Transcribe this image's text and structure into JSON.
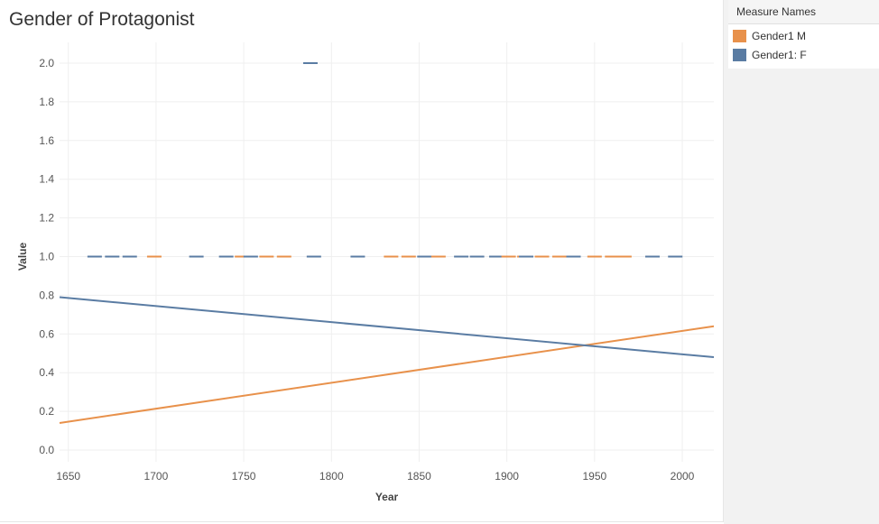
{
  "title": "Gender of Protagonist",
  "legend": {
    "header": "Measure Names",
    "items": [
      {
        "label": "Gender1 M",
        "color": "#e8914b"
      },
      {
        "label": "Gender1: F",
        "color": "#5a7ca3"
      }
    ]
  },
  "chart_data": {
    "type": "line",
    "title": "Gender of Protagonist",
    "xlabel": "Year",
    "ylabel": "Value",
    "xlim": [
      1645,
      2018
    ],
    "ylim": [
      0.0,
      2.0
    ],
    "x_ticks": [
      1650,
      1700,
      1750,
      1800,
      1850,
      1900,
      1950,
      2000
    ],
    "y_ticks": [
      "0.0",
      "0.2",
      "0.4",
      "0.6",
      "0.8",
      "1.0",
      "1.2",
      "1.4",
      "1.6",
      "1.8",
      "2.0"
    ],
    "grid": true,
    "legend_position": "top-right",
    "trend_lines": [
      {
        "name": "Gender1 M",
        "color": "#e8914b",
        "x": [
          1645,
          2018
        ],
        "y": [
          0.14,
          0.64
        ]
      },
      {
        "name": "Gender1: F",
        "color": "#5a7ca3",
        "x": [
          1645,
          2018
        ],
        "y": [
          0.79,
          0.48
        ]
      }
    ],
    "marks": [
      {
        "series": "Gender1: F",
        "color": "#5a7ca3",
        "year": 1788,
        "value": 2.0
      },
      {
        "series": "Gender1: F",
        "color": "#5a7ca3",
        "year": 1665,
        "value": 1.0
      },
      {
        "series": "Gender1: F",
        "color": "#5a7ca3",
        "year": 1675,
        "value": 1.0
      },
      {
        "series": "Gender1: F",
        "color": "#5a7ca3",
        "year": 1685,
        "value": 1.0
      },
      {
        "series": "Gender1 M",
        "color": "#e8914b",
        "year": 1699,
        "value": 1.0
      },
      {
        "series": "Gender1: F",
        "color": "#5a7ca3",
        "year": 1723,
        "value": 1.0
      },
      {
        "series": "Gender1: F",
        "color": "#5a7ca3",
        "year": 1740,
        "value": 1.0
      },
      {
        "series": "Gender1 M",
        "color": "#e8914b",
        "year": 1749,
        "value": 1.0
      },
      {
        "series": "Gender1: F",
        "color": "#5a7ca3",
        "year": 1754,
        "value": 1.0
      },
      {
        "series": "Gender1 M",
        "color": "#e8914b",
        "year": 1763,
        "value": 1.0
      },
      {
        "series": "Gender1 M",
        "color": "#e8914b",
        "year": 1773,
        "value": 1.0
      },
      {
        "series": "Gender1: F",
        "color": "#5a7ca3",
        "year": 1790,
        "value": 1.0
      },
      {
        "series": "Gender1: F",
        "color": "#5a7ca3",
        "year": 1815,
        "value": 1.0
      },
      {
        "series": "Gender1 M",
        "color": "#e8914b",
        "year": 1834,
        "value": 1.0
      },
      {
        "series": "Gender1 M",
        "color": "#e8914b",
        "year": 1844,
        "value": 1.0
      },
      {
        "series": "Gender1: F",
        "color": "#5a7ca3",
        "year": 1853,
        "value": 1.0
      },
      {
        "series": "Gender1 M",
        "color": "#e8914b",
        "year": 1861,
        "value": 1.0
      },
      {
        "series": "Gender1: F",
        "color": "#5a7ca3",
        "year": 1874,
        "value": 1.0
      },
      {
        "series": "Gender1: F",
        "color": "#5a7ca3",
        "year": 1883,
        "value": 1.0
      },
      {
        "series": "Gender1: F",
        "color": "#5a7ca3",
        "year": 1894,
        "value": 1.0
      },
      {
        "series": "Gender1 M",
        "color": "#e8914b",
        "year": 1901,
        "value": 1.0
      },
      {
        "series": "Gender1 M",
        "color": "#e8914b",
        "year": 1910,
        "value": 1.0
      },
      {
        "series": "Gender1: F",
        "color": "#5a7ca3",
        "year": 1911,
        "value": 1.0
      },
      {
        "series": "Gender1 M",
        "color": "#e8914b",
        "year": 1920,
        "value": 1.0
      },
      {
        "series": "Gender1 M",
        "color": "#e8914b",
        "year": 1930,
        "value": 1.0
      },
      {
        "series": "Gender1: F",
        "color": "#5a7ca3",
        "year": 1938,
        "value": 1.0
      },
      {
        "series": "Gender1 M",
        "color": "#e8914b",
        "year": 1950,
        "value": 1.0
      },
      {
        "series": "Gender1 M",
        "color": "#e8914b",
        "year": 1960,
        "value": 1.0
      },
      {
        "series": "Gender1 M",
        "color": "#e8914b",
        "year": 1967,
        "value": 1.0
      },
      {
        "series": "Gender1: F",
        "color": "#5a7ca3",
        "year": 1983,
        "value": 1.0
      },
      {
        "series": "Gender1: F",
        "color": "#5a7ca3",
        "year": 1996,
        "value": 1.0
      }
    ]
  }
}
